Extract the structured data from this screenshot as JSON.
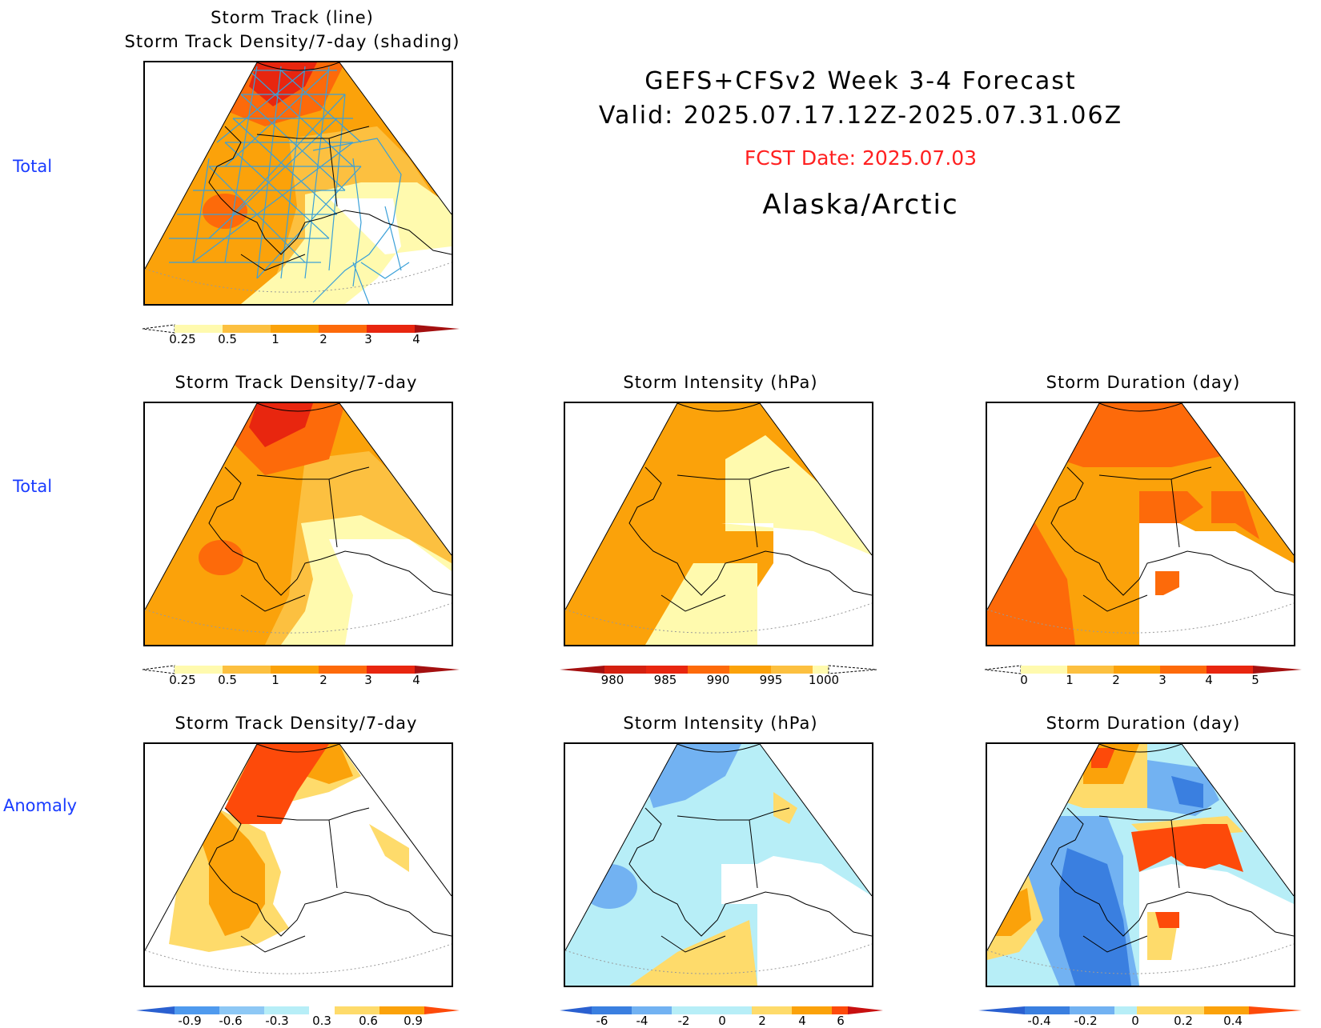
{
  "header": {
    "title_line1": "GEFS+CFSv2  Week  3-4  Forecast",
    "title_line2": "Valid:  2025.07.17.12Z-2025.07.31.06Z",
    "fcst_date": "FCST Date: 2025.07.03",
    "region": "Alaska/Arctic",
    "fcst_color": "#ff2020"
  },
  "row_labels": {
    "row1": "Total",
    "row2": "Total",
    "row3": "Anomaly"
  },
  "panels": {
    "top": {
      "title_line1": "Storm Track (line)",
      "title_line2": "Storm Track Density/7-day (shading)"
    },
    "density_total": {
      "title": "Storm Track Density/7-day"
    },
    "intensity_total": {
      "title": "Storm Intensity (hPa)"
    },
    "duration_total": {
      "title": "Storm Duration (day)"
    },
    "density_anom": {
      "title": "Storm Track Density/7-day"
    },
    "intensity_anom": {
      "title": "Storm Intensity (hPa)"
    },
    "duration_anom": {
      "title": "Storm Duration (day)"
    }
  },
  "colorbars": {
    "density": {
      "labels": [
        "0.25",
        "0.5",
        "1",
        "2",
        "3",
        "4"
      ],
      "colors": [
        "#fffaae",
        "#fcc040",
        "#fba20a",
        "#fd6a0a",
        "#e8260f"
      ]
    },
    "intensity": {
      "labels": [
        "980",
        "985",
        "990",
        "995",
        "1000"
      ],
      "colors": [
        "#d42010",
        "#fd6a0a",
        "#fba20a",
        "#fcc040",
        "#fffaae"
      ]
    },
    "duration": {
      "labels": [
        "0",
        "1",
        "2",
        "3",
        "4",
        "5"
      ],
      "colors": [
        "#fffaae",
        "#fcc040",
        "#fba20a",
        "#fd6a0a",
        "#e8260f"
      ]
    },
    "density_anom": {
      "labels": [
        "-0.9",
        "-0.6",
        "-0.3",
        "0.3",
        "0.6",
        "0.9"
      ],
      "colors": [
        "#4f9aee",
        "#8ec8f5",
        "#b7eef7",
        "#ffffff",
        "#fedb6b",
        "#fba20a",
        "#fd4a0a"
      ]
    },
    "intensity_anom": {
      "labels": [
        "-6",
        "-4",
        "-2",
        "0",
        "2",
        "4",
        "6"
      ],
      "colors": [
        "#3a7fe0",
        "#72b2f2",
        "#b7eef7",
        "#b7eef7",
        "#fedb6b",
        "#fba20a",
        "#fd4a0a",
        "#c81010"
      ]
    },
    "duration_anom": {
      "labels": [
        "-0.4",
        "-0.2",
        "0",
        "0.2",
        "0.4"
      ],
      "colors": [
        "#3a7fe0",
        "#72b2f2",
        "#b7eef7",
        "#fedb6b",
        "#fba20a",
        "#fd4a0a"
      ]
    }
  },
  "legend_colors": {
    "white": "#ffffff",
    "lightyellow": "#fffaae",
    "yellow": "#fedb6b",
    "lightorange": "#fcc040",
    "orange": "#fba20a",
    "darkorange": "#fd6a0a",
    "redorange": "#fd4a0a",
    "red": "#e8260f",
    "lightblue": "#b7eef7",
    "midblue": "#72b2f2",
    "blue": "#3a7fe0",
    "track": "#3aa0d8"
  }
}
